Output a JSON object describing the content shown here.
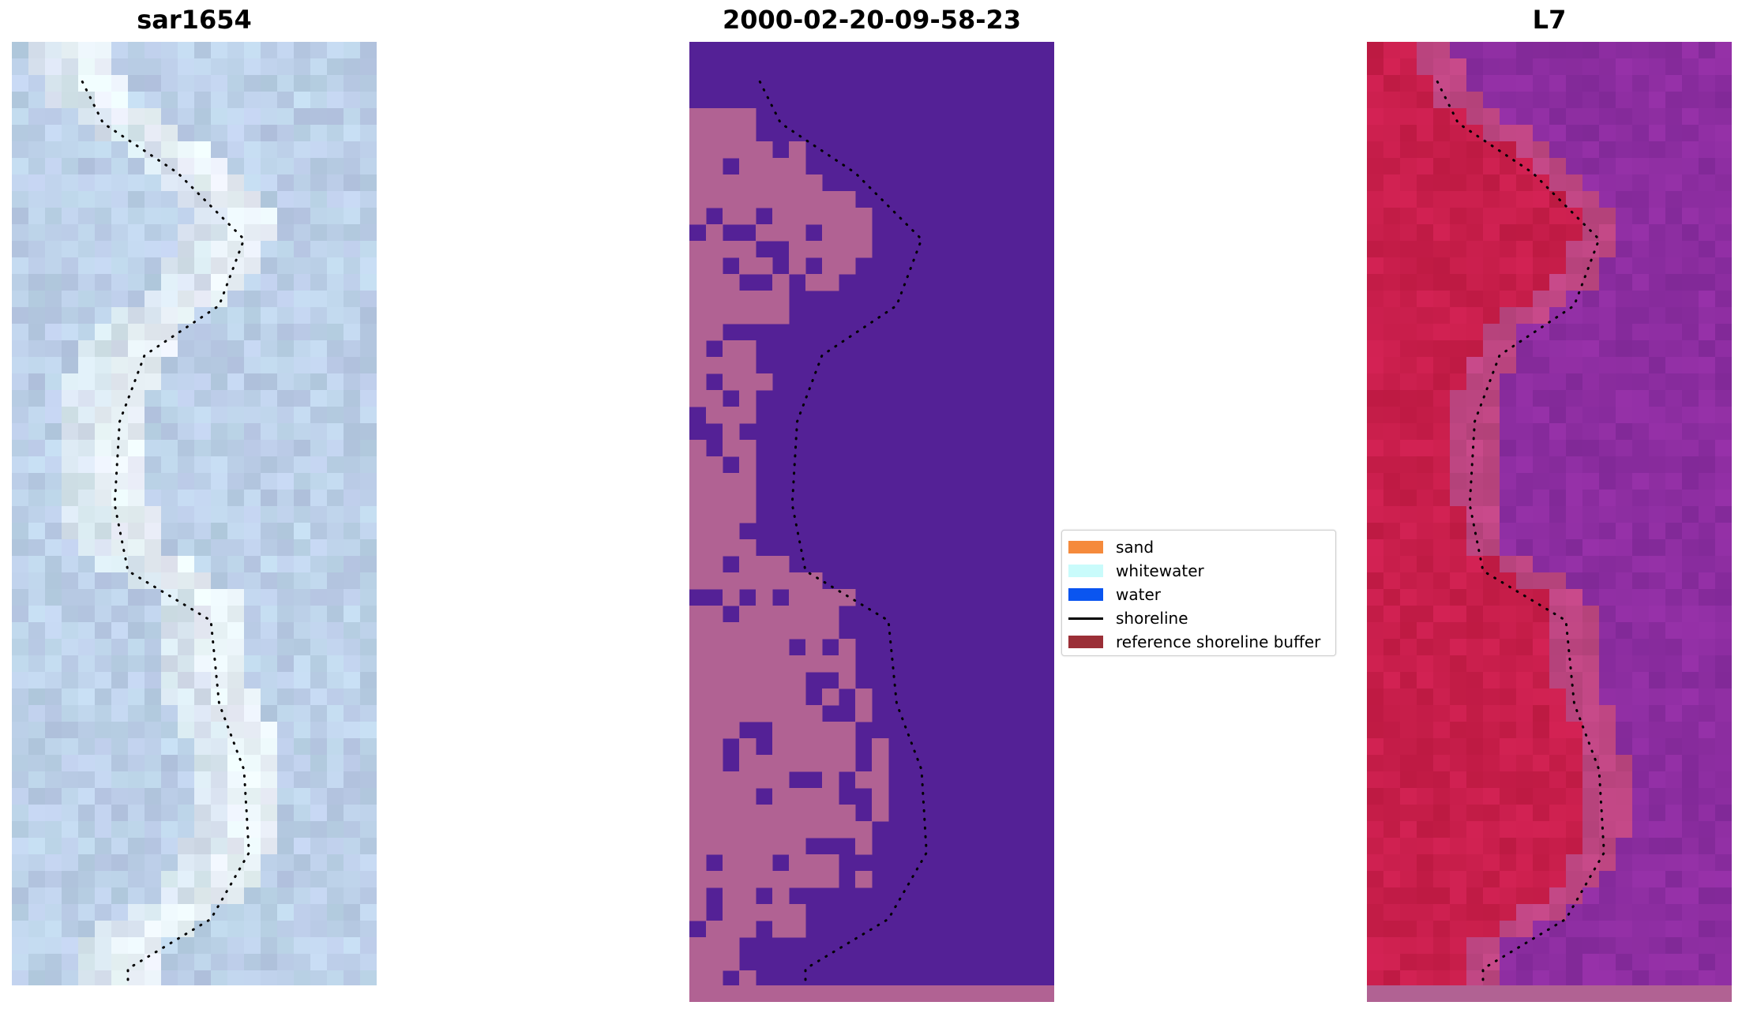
{
  "panels": [
    {
      "title": "sar1654"
    },
    {
      "title": "2000-02-20-09-58-23"
    },
    {
      "title": "L7"
    }
  ],
  "legend": {
    "items": [
      {
        "label": "sand",
        "color": "#f58a3c",
        "kind": "patch"
      },
      {
        "label": "whitewater",
        "color": "#c9fbfb",
        "kind": "patch"
      },
      {
        "label": "water",
        "color": "#0a55f0",
        "kind": "patch"
      },
      {
        "label": "shoreline",
        "color": "#000000",
        "kind": "line"
      },
      {
        "label": "reference shoreline buffer",
        "color": "#9b2f37",
        "kind": "patch"
      }
    ]
  },
  "colors": {
    "class_water": "#542196",
    "class_land": "#b16293",
    "false_color_land": "#c6214f",
    "false_color_water": "#8d2fa0",
    "rgb_base": "#bfd3e8"
  }
}
